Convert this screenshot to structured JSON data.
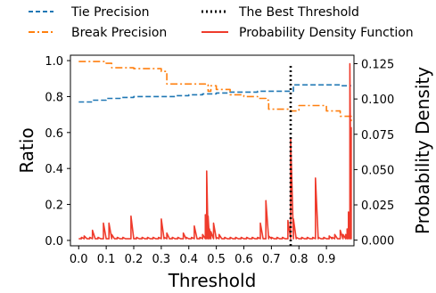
{
  "chart_data": {
    "type": "line",
    "title": "",
    "xlabel": "Threshold",
    "ylabel": "Ratio",
    "y2label": "Probability Density",
    "xlim": [
      -0.03,
      1.0
    ],
    "ylim": [
      -0.03,
      1.03
    ],
    "y2lim": [
      -0.004,
      0.131
    ],
    "x_ticks": [
      "0.0",
      "0.1",
      "0.2",
      "0.3",
      "0.4",
      "0.5",
      "0.6",
      "0.7",
      "0.8",
      "0.9"
    ],
    "y_ticks": [
      "0.0",
      "0.2",
      "0.4",
      "0.6",
      "0.8",
      "1.0"
    ],
    "y2_ticks": [
      "0.000",
      "0.025",
      "0.050",
      "0.075",
      "0.100",
      "0.125"
    ],
    "grid": false,
    "legend_position": "top",
    "legend": [
      {
        "label": "Tie Precision",
        "color": "#1f77b4",
        "style": "dashed"
      },
      {
        "label": "The Best Threshold",
        "color": "#000000",
        "style": "dotted"
      },
      {
        "label": "Break Precision",
        "color": "#ff7f0e",
        "style": "dashdot"
      },
      {
        "label": "Probability Density Function",
        "color": "#ef3b2c",
        "style": "solid"
      }
    ],
    "series": [
      {
        "name": "Tie Precision",
        "axis": "left",
        "x": [
          0.0,
          0.05,
          0.1,
          0.15,
          0.2,
          0.25,
          0.3,
          0.35,
          0.4,
          0.45,
          0.5,
          0.55,
          0.6,
          0.65,
          0.7,
          0.75,
          0.77,
          0.78,
          0.85,
          0.9,
          0.95,
          0.99
        ],
        "y": [
          0.77,
          0.78,
          0.79,
          0.795,
          0.8,
          0.8,
          0.8,
          0.805,
          0.81,
          0.815,
          0.82,
          0.825,
          0.825,
          0.83,
          0.83,
          0.83,
          0.83,
          0.865,
          0.865,
          0.865,
          0.86,
          0.86
        ]
      },
      {
        "name": "Break Precision",
        "axis": "left",
        "x": [
          0.0,
          0.1,
          0.12,
          0.2,
          0.3,
          0.32,
          0.46,
          0.47,
          0.48,
          0.5,
          0.55,
          0.6,
          0.65,
          0.68,
          0.69,
          0.75,
          0.77,
          0.8,
          0.85,
          0.9,
          0.95,
          0.99
        ],
        "y": [
          0.995,
          0.985,
          0.96,
          0.955,
          0.94,
          0.87,
          0.865,
          0.83,
          0.86,
          0.84,
          0.81,
          0.8,
          0.79,
          0.78,
          0.73,
          0.73,
          0.72,
          0.75,
          0.75,
          0.72,
          0.69,
          0.66
        ]
      },
      {
        "name": "Probability Density Function",
        "axis": "right",
        "x": [
          0.0,
          0.01,
          0.02,
          0.03,
          0.04,
          0.05,
          0.06,
          0.07,
          0.08,
          0.09,
          0.1,
          0.11,
          0.12,
          0.13,
          0.14,
          0.15,
          0.16,
          0.17,
          0.18,
          0.19,
          0.2,
          0.21,
          0.22,
          0.23,
          0.24,
          0.25,
          0.26,
          0.27,
          0.28,
          0.29,
          0.3,
          0.31,
          0.32,
          0.33,
          0.34,
          0.35,
          0.36,
          0.37,
          0.38,
          0.39,
          0.4,
          0.41,
          0.42,
          0.43,
          0.44,
          0.45,
          0.46,
          0.465,
          0.47,
          0.475,
          0.48,
          0.49,
          0.5,
          0.51,
          0.52,
          0.53,
          0.54,
          0.55,
          0.56,
          0.57,
          0.58,
          0.59,
          0.6,
          0.61,
          0.62,
          0.63,
          0.64,
          0.65,
          0.66,
          0.67,
          0.68,
          0.69,
          0.7,
          0.71,
          0.72,
          0.73,
          0.74,
          0.75,
          0.76,
          0.77,
          0.78,
          0.79,
          0.8,
          0.81,
          0.82,
          0.83,
          0.84,
          0.85,
          0.86,
          0.87,
          0.88,
          0.89,
          0.9,
          0.91,
          0.92,
          0.93,
          0.94,
          0.95,
          0.96,
          0.97,
          0.975,
          0.98,
          0.985,
          0.99
        ],
        "y": [
          0.001,
          0.002,
          0.003,
          0.001,
          0.002,
          0.007,
          0.001,
          0.002,
          0.001,
          0.012,
          0.001,
          0.012,
          0.004,
          0.001,
          0.002,
          0.001,
          0.002,
          0.001,
          0.001,
          0.017,
          0.001,
          0.002,
          0.001,
          0.002,
          0.001,
          0.002,
          0.001,
          0.002,
          0.001,
          0.002,
          0.015,
          0.002,
          0.005,
          0.001,
          0.002,
          0.001,
          0.002,
          0.001,
          0.005,
          0.002,
          0.001,
          0.002,
          0.01,
          0.001,
          0.002,
          0.004,
          0.018,
          0.049,
          0.017,
          0.008,
          0.006,
          0.012,
          0.002,
          0.004,
          0.001,
          0.002,
          0.001,
          0.002,
          0.001,
          0.002,
          0.001,
          0.002,
          0.001,
          0.002,
          0.001,
          0.002,
          0.001,
          0.002,
          0.012,
          0.001,
          0.028,
          0.003,
          0.002,
          0.001,
          0.002,
          0.001,
          0.002,
          0.001,
          0.014,
          0.072,
          0.015,
          0.002,
          0.001,
          0.002,
          0.001,
          0.002,
          0.001,
          0.002,
          0.044,
          0.002,
          0.001,
          0.002,
          0.001,
          0.003,
          0.002,
          0.004,
          0.001,
          0.007,
          0.004,
          0.004,
          0.008,
          0.02,
          0.125,
          0.08
        ]
      }
    ],
    "best_threshold": 0.77
  }
}
